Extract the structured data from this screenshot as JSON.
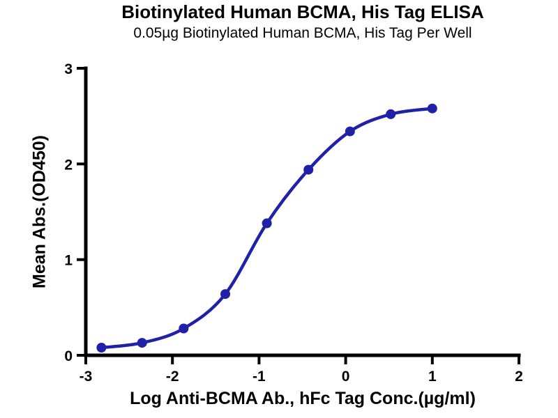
{
  "figure": {
    "title": "Biotinylated Human BCMA, His Tag ELISA",
    "subtitle": "0.05µg Biotinylated Human BCMA, His Tag Per Well"
  },
  "chart_data": {
    "type": "scatter",
    "curve_fit": "sigmoidal dose-response line through points",
    "x": [
      -2.82,
      -2.35,
      -1.87,
      -1.39,
      -0.91,
      -0.43,
      0.05,
      0.52,
      1.0
    ],
    "y": [
      0.08,
      0.13,
      0.28,
      0.64,
      1.38,
      1.94,
      2.34,
      2.52,
      2.58
    ],
    "xlabel": "Log Anti-BCMA Ab., hFc Tag Conc.(µg/ml)",
    "ylabel": "Mean Abs.(OD450)",
    "xlim": [
      -3,
      2
    ],
    "ylim": [
      0,
      3
    ],
    "xticks": [
      "-3",
      "-2",
      "-1",
      "0",
      "1",
      "2"
    ],
    "yticks": [
      "0",
      "1",
      "2",
      "3"
    ],
    "grid": false,
    "legend": false,
    "marker_color": "#2020a8",
    "line_color": "#2020a8",
    "axis_color": "#000000"
  }
}
